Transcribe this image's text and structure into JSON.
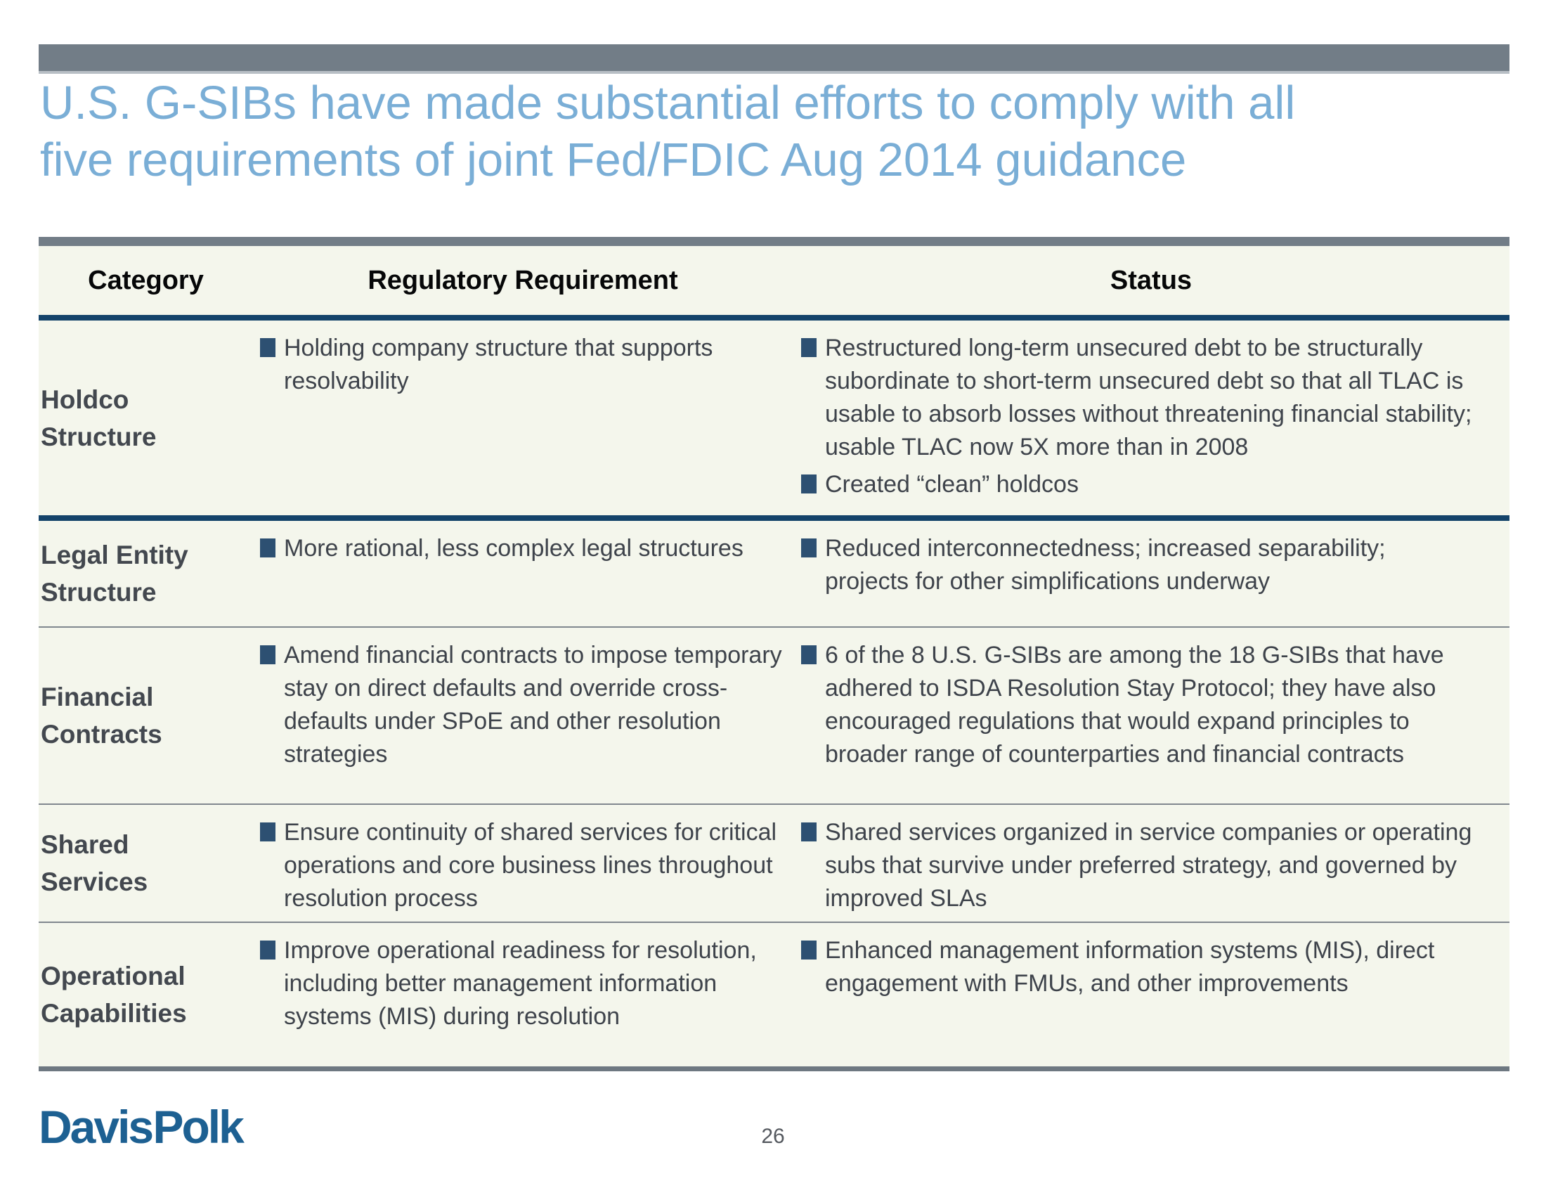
{
  "slide": {
    "title_lines": [
      "U.S. G-SIBs have made substantial efforts to comply with all",
      "five requirements of joint Fed/FDIC Aug 2014 guidance"
    ],
    "logo_text": "Davis Polk",
    "page_number": "26"
  },
  "colors": {
    "title_blue": "#7aaed6",
    "bar_gray": "#727d87",
    "navy_rule": "#14436a",
    "bullet_navy": "#2d5072",
    "body_text": "#3e434b",
    "category_text": "#43484f",
    "table_background": "#f4f6ec",
    "logo_blue": "#1d6092"
  },
  "table": {
    "headers": [
      "Category",
      "Regulatory Requirement",
      "Status"
    ],
    "rows": [
      {
        "category": "Holdco Structure",
        "requirements": [
          "Holding company structure that supports resolvability"
        ],
        "status": [
          "Restructured long-term unsecured debt to be structurally subordinate to short-term unsecured debt so that all TLAC is usable to absorb losses without threatening financial stability; usable TLAC now 5X more than in 2008",
          "Created “clean” holdcos"
        ]
      },
      {
        "category": "Legal Entity Structure",
        "requirements": [
          "More rational, less complex legal structures"
        ],
        "status": [
          "Reduced interconnectedness; increased separability; projects for other simplifications underway"
        ]
      },
      {
        "category": "Financial Contracts",
        "requirements": [
          "Amend financial contracts to impose temporary stay on direct defaults and override cross-defaults under SPoE and other resolution strategies"
        ],
        "status": [
          "6 of the 8 U.S. G-SIBs are among the 18 G-SIBs that have adhered to ISDA Resolution Stay Protocol; they have also encouraged regulations that would expand principles to broader range of counterparties and financial contracts"
        ]
      },
      {
        "category": "Shared Services",
        "requirements": [
          "Ensure continuity of shared services for critical operations and core business lines throughout resolution process"
        ],
        "status": [
          "Shared services organized in service companies or operating subs that survive under preferred strategy, and governed by improved SLAs"
        ]
      },
      {
        "category": "Operational Capabilities",
        "requirements": [
          "Improve operational readiness for resolution, including better management information systems (MIS) during resolution"
        ],
        "status": [
          "Enhanced management information systems (MIS), direct engagement with FMUs, and other improvements"
        ]
      }
    ]
  }
}
